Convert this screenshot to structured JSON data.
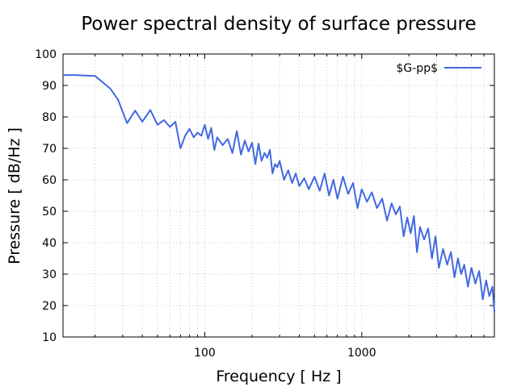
{
  "chart_data": {
    "type": "line",
    "title": "Power spectral density of surface pressure",
    "xlabel": "Frequency [ Hz ]",
    "ylabel": "Pressure [ dB/Hz ]",
    "xscale": "log",
    "xlim": [
      12.5,
      7000
    ],
    "ylim": [
      10,
      100
    ],
    "yticks": [
      10,
      20,
      30,
      40,
      50,
      60,
      70,
      80,
      90,
      100
    ],
    "xticks": [
      100,
      1000
    ],
    "xtick_labels": [
      "100",
      "1000"
    ],
    "grid": true,
    "legend_position": "top-right",
    "series": [
      {
        "name": "$G-pp$",
        "color": "#4169e1",
        "x": [
          12.5,
          15,
          20,
          25,
          28,
          32,
          36,
          40,
          45,
          50,
          55,
          60,
          65,
          70,
          75,
          80,
          85,
          90,
          95,
          100,
          105,
          110,
          115,
          120,
          130,
          140,
          150,
          160,
          170,
          180,
          190,
          200,
          210,
          220,
          230,
          240,
          250,
          260,
          270,
          280,
          290,
          300,
          320,
          340,
          360,
          380,
          400,
          430,
          460,
          500,
          540,
          580,
          620,
          660,
          700,
          760,
          820,
          880,
          940,
          1000,
          1080,
          1160,
          1250,
          1350,
          1450,
          1550,
          1650,
          1750,
          1850,
          1950,
          2050,
          2150,
          2250,
          2350,
          2500,
          2650,
          2800,
          2950,
          3100,
          3300,
          3500,
          3700,
          3900,
          4100,
          4300,
          4500,
          4750,
          5000,
          5300,
          5600,
          5900,
          6200,
          6500,
          6800,
          7000
        ],
        "values": [
          93.3,
          93.3,
          93,
          89,
          85.5,
          78,
          82,
          78.5,
          82.2,
          77.5,
          79,
          76.8,
          78.5,
          70,
          74,
          76.2,
          73.5,
          75,
          74,
          77.5,
          73,
          76.5,
          69.5,
          73.5,
          71,
          73,
          68.5,
          75.5,
          68,
          72.5,
          69,
          71.8,
          65,
          71.5,
          66,
          68.5,
          67,
          69.5,
          62,
          65,
          64,
          66,
          60,
          63,
          59,
          62,
          58,
          60.5,
          57,
          61,
          56.5,
          62,
          55,
          60,
          54,
          61,
          55.5,
          59,
          51,
          57,
          53,
          56,
          51,
          54,
          47,
          52.5,
          49,
          51.5,
          42,
          48,
          43,
          48.5,
          37,
          45,
          41,
          44.5,
          35,
          42,
          32,
          38,
          33,
          37,
          29,
          35,
          30,
          33,
          26,
          32,
          27,
          31,
          22,
          28,
          23,
          26,
          18
        ]
      }
    ]
  }
}
